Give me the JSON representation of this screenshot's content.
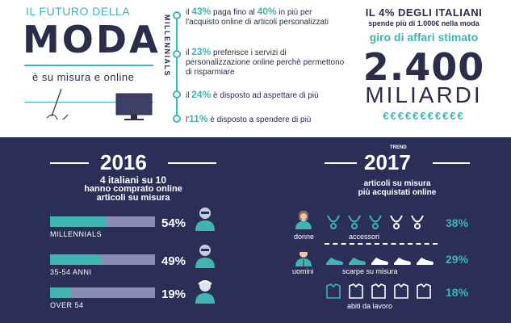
{
  "header": {
    "subtitle": "IL FUTURO DELLA",
    "title": "MODA",
    "tagline": "è su misura e online"
  },
  "millennials": {
    "label": "MILLENNIALS",
    "stats": [
      {
        "pre": "il ",
        "pct": "43%",
        "mid": " paga fino al ",
        "pct2": "40%",
        "post": " in più per l'acquisto online di articoli personalizzati"
      },
      {
        "pre": "il ",
        "pct": "23%",
        "mid": " preferisce i servizi di personalizzazione online perchè permettono di risparmiare",
        "pct2": "",
        "post": ""
      },
      {
        "pre": "il ",
        "pct": "24%",
        "mid": " è disposto ad aspettare di più",
        "pct2": "",
        "post": ""
      },
      {
        "pre": "l'",
        "pct": "11%",
        "mid": " è disposto a spendere di più",
        "pct2": "",
        "post": ""
      }
    ]
  },
  "revenue": {
    "headline": "IL 4% DEGLI ITALIANI",
    "sub": "spende più di 1.000€ nella moda",
    "giro": "giro di affari stimato",
    "amount": "2.400",
    "unit": "MILIARDI",
    "euros": "€€€€€€€€€€€"
  },
  "y2016": {
    "year": "2016",
    "desc": [
      "4 italiani su 10",
      "hanno comprato online",
      "articoli su misura"
    ],
    "bars": [
      {
        "label": "MILLENNIALS",
        "pct_text": "54%",
        "value": 54
      },
      {
        "label": "35-54 ANNI",
        "pct_text": "49%",
        "value": 49
      },
      {
        "label": "OVER 54",
        "pct_text": "19%",
        "value": 19
      }
    ]
  },
  "y2017": {
    "trend": "TREND",
    "year": "2017",
    "desc": [
      "articoli su misura",
      "più acquistati online"
    ],
    "donne": "donne",
    "uomini": "uomini",
    "categories": [
      {
        "label": "accessori",
        "pct_text": "38%"
      },
      {
        "label": "scarpe su misura",
        "pct_text": "29%"
      },
      {
        "label": "abiti da lavoro",
        "pct_text": "18%"
      }
    ]
  },
  "colors": {
    "navy": "#2b2f57",
    "teal": "#3fb5b0",
    "dark": "#2b2d4a",
    "bar_bg": "#8a8cb3"
  }
}
